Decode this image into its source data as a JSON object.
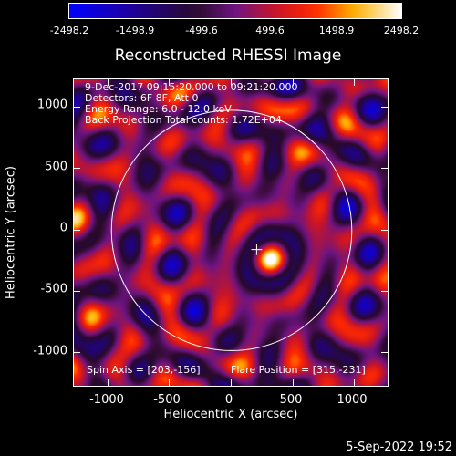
{
  "colorbar": {
    "ticks": [
      "-2498.2",
      "-1498.9",
      "-499.6",
      "499.6",
      "1498.9",
      "2498.2"
    ],
    "tick_values": [
      -2498.2,
      -1498.9,
      -499.6,
      499.6,
      1498.9,
      2498.2
    ]
  },
  "title": "Reconstructed RHESSI Image",
  "info": {
    "line1": "9-Dec-2017 09:15:20.000 to 09:21:20.000",
    "line2": "Detectors: 6F 8F, Att 0",
    "line3": "Energy Range: 6.0 - 12.0 keV",
    "line4": "Back Projection    Total counts: 1.72E+04"
  },
  "axes": {
    "xlabel": "Heliocentric X (arcsec)",
    "ylabel": "Heliocentric Y (arcsec)",
    "xticks": [
      "-1000",
      "-500",
      "0",
      "500",
      "1000"
    ],
    "xtick_values": [
      -1000,
      -500,
      0,
      500,
      1000
    ],
    "yticks": [
      "1000",
      "500",
      "0",
      "-500",
      "-1000"
    ],
    "ytick_values": [
      1000,
      500,
      0,
      -500,
      -1000
    ],
    "xlim": [
      -1280,
      1280
    ],
    "ylim": [
      -1280,
      1230
    ]
  },
  "spin_axis": "Spin Axis = [203,-156]",
  "flare_position": "Flare Position = [315,-231]",
  "spin_axis_xy": [
    203,
    -156
  ],
  "solar_radius_arcsec": 975,
  "date_stamp": "5-Sep-2022 19:52",
  "colors": {
    "background": "#000000",
    "text": "#ffffff"
  }
}
